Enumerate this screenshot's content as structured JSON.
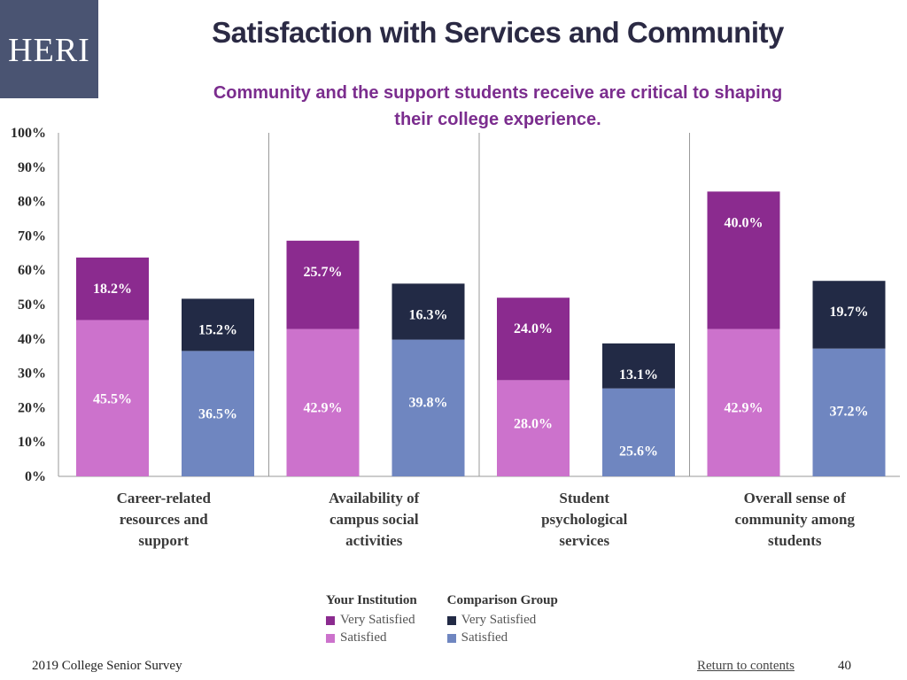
{
  "logo": {
    "text": "HERI"
  },
  "title": "Satisfaction with Services and Community",
  "subtitle": "Community and the support students receive are critical to shaping their college experience.",
  "colors": {
    "your_very": "#8b2b8f",
    "your_sat": "#cc72cc",
    "comp_very": "#222a45",
    "comp_sat": "#6f86c0",
    "title": "#2b2a44",
    "subtitle": "#7b2d8e",
    "logo_bg": "#4a5472"
  },
  "chart_data": {
    "type": "bar",
    "stacked": true,
    "categories": [
      "Career-related resources and support",
      "Availability of campus social activities",
      "Student psychological services",
      "Overall sense of community among students"
    ],
    "category_lines": [
      [
        "Career-related",
        "resources and",
        "support"
      ],
      [
        "Availability of",
        "campus social",
        "activities"
      ],
      [
        "Student",
        "psychological",
        "services"
      ],
      [
        "Overall sense of",
        "community among",
        "students"
      ]
    ],
    "groups": [
      {
        "name": "Your Institution",
        "series": [
          {
            "name": "Satisfied",
            "values": [
              45.5,
              42.9,
              28.0,
              42.9
            ]
          },
          {
            "name": "Very Satisfied",
            "values": [
              18.2,
              25.7,
              24.0,
              40.0
            ]
          }
        ]
      },
      {
        "name": "Comparison Group",
        "series": [
          {
            "name": "Satisfied",
            "values": [
              36.5,
              39.8,
              25.6,
              37.2
            ]
          },
          {
            "name": "Very Satisfied",
            "values": [
              15.2,
              16.3,
              13.1,
              19.7
            ]
          }
        ]
      }
    ],
    "y_ticks": [
      "0%",
      "10%",
      "20%",
      "30%",
      "40%",
      "50%",
      "60%",
      "70%",
      "80%",
      "90%",
      "100%"
    ],
    "ylim": [
      0,
      100
    ],
    "grid": false,
    "legend_position": "bottom-center"
  },
  "legend": {
    "your": {
      "heading": "Your Institution",
      "very": "Very Satisfied",
      "sat": "Satisfied"
    },
    "comp": {
      "heading": "Comparison Group",
      "very": "Very Satisfied",
      "sat": "Satisfied"
    }
  },
  "footer": {
    "survey": "2019 College Senior Survey",
    "link": "Return to contents",
    "page": "40"
  }
}
